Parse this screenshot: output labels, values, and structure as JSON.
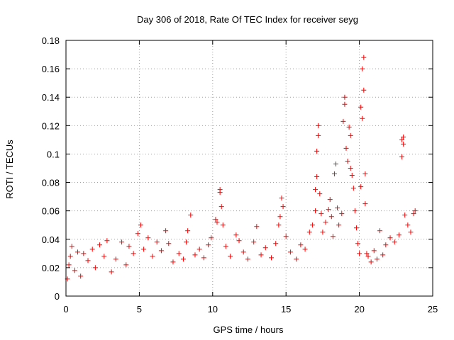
{
  "chart_data": {
    "type": "scatter",
    "title": "Day 306 of 2018, Rate Of TEC Index for receiver seyg",
    "xlabel": "GPS time / hours",
    "ylabel": "ROTI / TECUs",
    "xlim": [
      0,
      25
    ],
    "ylim": [
      0,
      0.18
    ],
    "xticks": [
      0,
      5,
      10,
      15,
      20,
      25
    ],
    "yticks": [
      0,
      0.02,
      0.04,
      0.06,
      0.08,
      0.1,
      0.12,
      0.14,
      0.16,
      0.18
    ],
    "xtick_labels": [
      "0",
      "5",
      "10",
      "15",
      "20",
      "25"
    ],
    "ytick_labels": [
      "0",
      "0.02",
      "0.04",
      "0.06",
      "0.08",
      "0.1",
      "0.12",
      "0.14",
      "0.16",
      "0.18"
    ],
    "grid": true,
    "marker": "+",
    "marker_color": "#ff0000",
    "series": [
      {
        "name": "ROTI",
        "points": [
          [
            0.1,
            0.012
          ],
          [
            0.2,
            0.022
          ],
          [
            0.3,
            0.028
          ],
          [
            0.4,
            0.035
          ],
          [
            0.6,
            0.018
          ],
          [
            0.8,
            0.031
          ],
          [
            1.0,
            0.014
          ],
          [
            1.2,
            0.03
          ],
          [
            1.5,
            0.025
          ],
          [
            1.8,
            0.033
          ],
          [
            2.0,
            0.02
          ],
          [
            2.3,
            0.036
          ],
          [
            2.6,
            0.028
          ],
          [
            2.8,
            0.039
          ],
          [
            3.1,
            0.017
          ],
          [
            3.4,
            0.026
          ],
          [
            3.8,
            0.038
          ],
          [
            4.1,
            0.022
          ],
          [
            4.3,
            0.035
          ],
          [
            4.6,
            0.03
          ],
          [
            4.9,
            0.044
          ],
          [
            5.1,
            0.05
          ],
          [
            5.3,
            0.033
          ],
          [
            5.6,
            0.041
          ],
          [
            5.9,
            0.028
          ],
          [
            6.2,
            0.038
          ],
          [
            6.5,
            0.032
          ],
          [
            6.8,
            0.046
          ],
          [
            7.0,
            0.037
          ],
          [
            7.3,
            0.024
          ],
          [
            7.7,
            0.03
          ],
          [
            8.0,
            0.026
          ],
          [
            8.2,
            0.038
          ],
          [
            8.3,
            0.046
          ],
          [
            8.5,
            0.057
          ],
          [
            8.8,
            0.029
          ],
          [
            9.1,
            0.033
          ],
          [
            9.4,
            0.027
          ],
          [
            9.7,
            0.036
          ],
          [
            9.9,
            0.041
          ],
          [
            10.2,
            0.054
          ],
          [
            10.3,
            0.052
          ],
          [
            10.5,
            0.075
          ],
          [
            10.5,
            0.073
          ],
          [
            10.6,
            0.063
          ],
          [
            10.7,
            0.05
          ],
          [
            10.9,
            0.035
          ],
          [
            11.2,
            0.028
          ],
          [
            11.6,
            0.043
          ],
          [
            11.8,
            0.039
          ],
          [
            12.1,
            0.031
          ],
          [
            12.4,
            0.026
          ],
          [
            12.8,
            0.038
          ],
          [
            13.0,
            0.049
          ],
          [
            13.3,
            0.029
          ],
          [
            13.6,
            0.034
          ],
          [
            14.0,
            0.027
          ],
          [
            14.3,
            0.037
          ],
          [
            14.5,
            0.05
          ],
          [
            14.6,
            0.056
          ],
          [
            14.7,
            0.069
          ],
          [
            14.8,
            0.063
          ],
          [
            15.0,
            0.042
          ],
          [
            15.3,
            0.031
          ],
          [
            15.7,
            0.026
          ],
          [
            16.0,
            0.036
          ],
          [
            16.3,
            0.033
          ],
          [
            16.6,
            0.045
          ],
          [
            16.8,
            0.05
          ],
          [
            17.0,
            0.06
          ],
          [
            17.0,
            0.075
          ],
          [
            17.1,
            0.084
          ],
          [
            17.1,
            0.102
          ],
          [
            17.2,
            0.12
          ],
          [
            17.2,
            0.113
          ],
          [
            17.3,
            0.072
          ],
          [
            17.4,
            0.058
          ],
          [
            17.5,
            0.045
          ],
          [
            17.7,
            0.052
          ],
          [
            17.9,
            0.061
          ],
          [
            18.0,
            0.068
          ],
          [
            18.1,
            0.056
          ],
          [
            18.2,
            0.042
          ],
          [
            18.3,
            0.086
          ],
          [
            18.4,
            0.093
          ],
          [
            18.5,
            0.062
          ],
          [
            18.6,
            0.05
          ],
          [
            18.8,
            0.058
          ],
          [
            18.9,
            0.123
          ],
          [
            19.0,
            0.14
          ],
          [
            19.0,
            0.135
          ],
          [
            19.1,
            0.104
          ],
          [
            19.2,
            0.095
          ],
          [
            19.3,
            0.119
          ],
          [
            19.4,
            0.113
          ],
          [
            19.4,
            0.09
          ],
          [
            19.5,
            0.085
          ],
          [
            19.6,
            0.076
          ],
          [
            19.7,
            0.06
          ],
          [
            19.8,
            0.048
          ],
          [
            19.9,
            0.037
          ],
          [
            20.0,
            0.03
          ],
          [
            20.1,
            0.077
          ],
          [
            20.1,
            0.133
          ],
          [
            20.2,
            0.125
          ],
          [
            20.2,
            0.16
          ],
          [
            20.3,
            0.168
          ],
          [
            20.3,
            0.145
          ],
          [
            20.4,
            0.086
          ],
          [
            20.4,
            0.065
          ],
          [
            20.5,
            0.03
          ],
          [
            20.6,
            0.028
          ],
          [
            20.8,
            0.024
          ],
          [
            21.0,
            0.032
          ],
          [
            21.2,
            0.026
          ],
          [
            21.4,
            0.046
          ],
          [
            21.6,
            0.029
          ],
          [
            21.8,
            0.036
          ],
          [
            22.1,
            0.041
          ],
          [
            22.4,
            0.038
          ],
          [
            22.7,
            0.043
          ],
          [
            22.9,
            0.11
          ],
          [
            22.9,
            0.098
          ],
          [
            23.0,
            0.112
          ],
          [
            23.0,
            0.107
          ],
          [
            23.1,
            0.057
          ],
          [
            23.3,
            0.05
          ],
          [
            23.5,
            0.045
          ],
          [
            23.7,
            0.058
          ],
          [
            23.8,
            0.06
          ]
        ]
      }
    ]
  }
}
